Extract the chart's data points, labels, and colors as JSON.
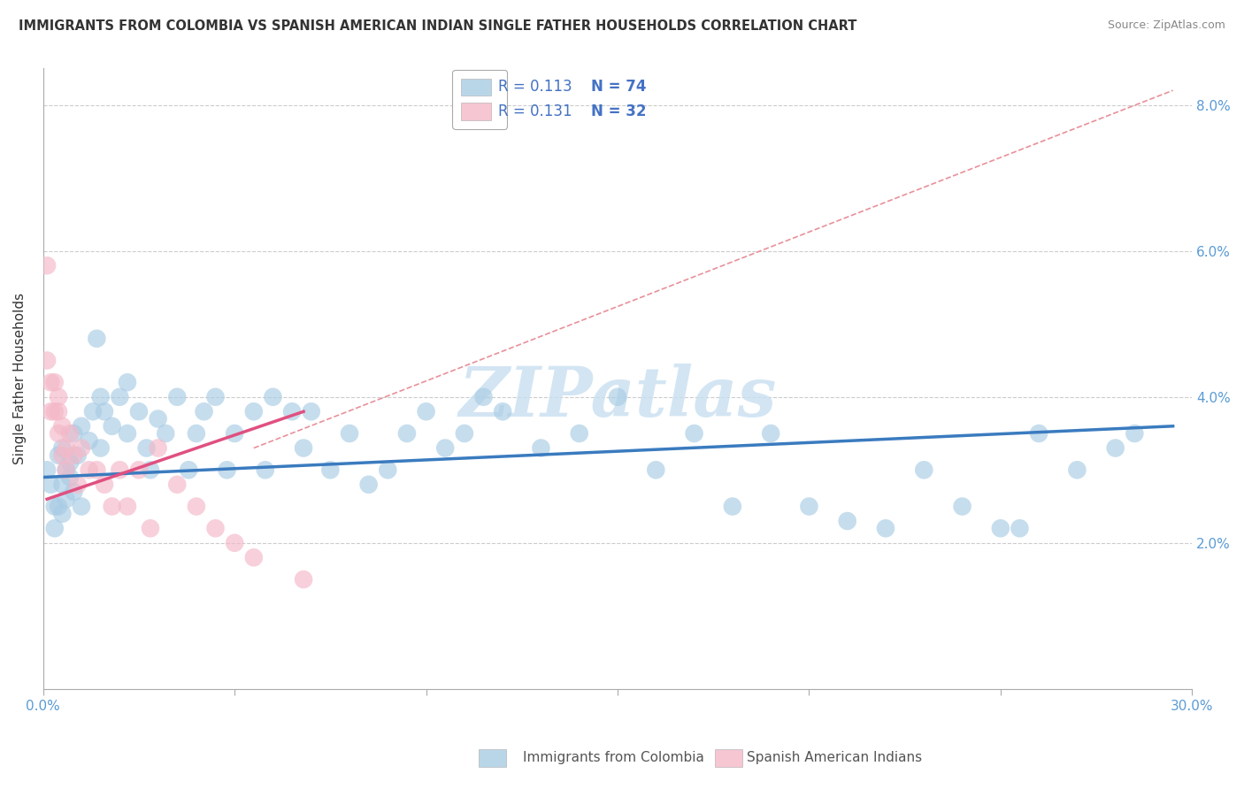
{
  "title": "IMMIGRANTS FROM COLOMBIA VS SPANISH AMERICAN INDIAN SINGLE FATHER HOUSEHOLDS CORRELATION CHART",
  "source": "Source: ZipAtlas.com",
  "ylabel": "Single Father Households",
  "xlim": [
    0.0,
    0.3
  ],
  "ylim": [
    0.0,
    0.085
  ],
  "xtick_vals": [
    0.0,
    0.05,
    0.1,
    0.15,
    0.2,
    0.25,
    0.3
  ],
  "xticklabels": [
    "0.0%",
    "",
    "",
    "",
    "",
    "",
    "30.0%"
  ],
  "ytick_vals": [
    0.0,
    0.02,
    0.04,
    0.06,
    0.08
  ],
  "yticklabels_right": [
    "",
    "2.0%",
    "4.0%",
    "6.0%",
    "8.0%"
  ],
  "legend_r1": "R = 0.113",
  "legend_n1": "N = 74",
  "legend_r2": "R = 0.131",
  "legend_n2": "N = 32",
  "color_blue": "#a8cce4",
  "color_pink": "#f4b8c8",
  "color_blue_line": "#3a7bbf",
  "color_pink_line": "#e05080",
  "color_dashed": "#e8909a",
  "color_grid": "#cccccc",
  "watermark_color": "#c8dff0",
  "blue_trend_x": [
    0.0,
    0.295
  ],
  "blue_trend_y": [
    0.029,
    0.036
  ],
  "pink_trend_x": [
    0.001,
    0.068
  ],
  "pink_trend_y": [
    0.026,
    0.038
  ],
  "dashed_trend_x": [
    0.055,
    0.295
  ],
  "dashed_trend_y": [
    0.033,
    0.082
  ],
  "blue_dots": [
    [
      0.001,
      0.03
    ],
    [
      0.002,
      0.028
    ],
    [
      0.003,
      0.025
    ],
    [
      0.003,
      0.022
    ],
    [
      0.004,
      0.032
    ],
    [
      0.004,
      0.025
    ],
    [
      0.005,
      0.033
    ],
    [
      0.005,
      0.028
    ],
    [
      0.005,
      0.024
    ],
    [
      0.006,
      0.03
    ],
    [
      0.006,
      0.026
    ],
    [
      0.007,
      0.031
    ],
    [
      0.007,
      0.029
    ],
    [
      0.008,
      0.027
    ],
    [
      0.008,
      0.035
    ],
    [
      0.009,
      0.032
    ],
    [
      0.01,
      0.036
    ],
    [
      0.01,
      0.025
    ],
    [
      0.012,
      0.034
    ],
    [
      0.013,
      0.038
    ],
    [
      0.014,
      0.048
    ],
    [
      0.015,
      0.04
    ],
    [
      0.015,
      0.033
    ],
    [
      0.016,
      0.038
    ],
    [
      0.018,
      0.036
    ],
    [
      0.02,
      0.04
    ],
    [
      0.022,
      0.042
    ],
    [
      0.022,
      0.035
    ],
    [
      0.025,
      0.038
    ],
    [
      0.027,
      0.033
    ],
    [
      0.028,
      0.03
    ],
    [
      0.03,
      0.037
    ],
    [
      0.032,
      0.035
    ],
    [
      0.035,
      0.04
    ],
    [
      0.038,
      0.03
    ],
    [
      0.04,
      0.035
    ],
    [
      0.042,
      0.038
    ],
    [
      0.045,
      0.04
    ],
    [
      0.048,
      0.03
    ],
    [
      0.05,
      0.035
    ],
    [
      0.055,
      0.038
    ],
    [
      0.058,
      0.03
    ],
    [
      0.06,
      0.04
    ],
    [
      0.065,
      0.038
    ],
    [
      0.068,
      0.033
    ],
    [
      0.07,
      0.038
    ],
    [
      0.075,
      0.03
    ],
    [
      0.08,
      0.035
    ],
    [
      0.085,
      0.028
    ],
    [
      0.09,
      0.03
    ],
    [
      0.095,
      0.035
    ],
    [
      0.1,
      0.038
    ],
    [
      0.105,
      0.033
    ],
    [
      0.11,
      0.035
    ],
    [
      0.115,
      0.04
    ],
    [
      0.12,
      0.038
    ],
    [
      0.13,
      0.033
    ],
    [
      0.14,
      0.035
    ],
    [
      0.15,
      0.04
    ],
    [
      0.16,
      0.03
    ],
    [
      0.17,
      0.035
    ],
    [
      0.18,
      0.025
    ],
    [
      0.19,
      0.035
    ],
    [
      0.2,
      0.025
    ],
    [
      0.21,
      0.023
    ],
    [
      0.22,
      0.022
    ],
    [
      0.23,
      0.03
    ],
    [
      0.24,
      0.025
    ],
    [
      0.25,
      0.022
    ],
    [
      0.255,
      0.022
    ],
    [
      0.26,
      0.035
    ],
    [
      0.27,
      0.03
    ],
    [
      0.28,
      0.033
    ],
    [
      0.285,
      0.035
    ]
  ],
  "pink_dots": [
    [
      0.001,
      0.058
    ],
    [
      0.001,
      0.045
    ],
    [
      0.002,
      0.042
    ],
    [
      0.002,
      0.038
    ],
    [
      0.003,
      0.042
    ],
    [
      0.003,
      0.038
    ],
    [
      0.004,
      0.04
    ],
    [
      0.004,
      0.038
    ],
    [
      0.004,
      0.035
    ],
    [
      0.005,
      0.036
    ],
    [
      0.005,
      0.032
    ],
    [
      0.006,
      0.033
    ],
    [
      0.006,
      0.03
    ],
    [
      0.007,
      0.035
    ],
    [
      0.008,
      0.032
    ],
    [
      0.009,
      0.028
    ],
    [
      0.01,
      0.033
    ],
    [
      0.012,
      0.03
    ],
    [
      0.014,
      0.03
    ],
    [
      0.016,
      0.028
    ],
    [
      0.018,
      0.025
    ],
    [
      0.02,
      0.03
    ],
    [
      0.022,
      0.025
    ],
    [
      0.025,
      0.03
    ],
    [
      0.028,
      0.022
    ],
    [
      0.03,
      0.033
    ],
    [
      0.035,
      0.028
    ],
    [
      0.04,
      0.025
    ],
    [
      0.045,
      0.022
    ],
    [
      0.05,
      0.02
    ],
    [
      0.055,
      0.018
    ],
    [
      0.068,
      0.015
    ]
  ]
}
